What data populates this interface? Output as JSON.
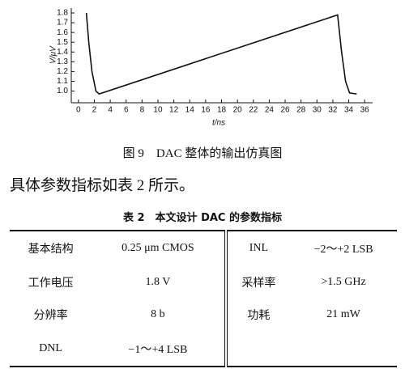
{
  "chart_data": {
    "type": "line",
    "xlabel": "t/ns",
    "ylabel": "V/μV",
    "x": [
      1,
      1.3,
      1.7,
      2.2,
      2.6,
      32.6,
      33.1,
      33.6,
      34.1,
      35
    ],
    "series": [
      {
        "color": "#111111",
        "values": [
          1.8,
          1.5,
          1.2,
          1.0,
          0.97,
          1.78,
          1.4,
          1.1,
          0.98,
          0.97
        ]
      }
    ],
    "xlim": [
      -0.9,
      37
    ],
    "ylim": [
      0.88,
      1.85
    ],
    "xticks": [
      0,
      2,
      4,
      6,
      8,
      10,
      12,
      14,
      16,
      18,
      20,
      22,
      24,
      26,
      28,
      30,
      32,
      34,
      36
    ],
    "yticks": [
      {
        "value": 1,
        "label": "1.0"
      },
      1.1,
      1.2,
      1.3,
      1.4,
      1.5,
      1.6,
      1.7,
      1.8
    ]
  },
  "caption": "图 9　DAC 整体的输出仿真图",
  "paragraph": "具体参数指标如表 2 所示。",
  "table": {
    "title": "表 2　本文设计 DAC 的参数指标",
    "rows": [
      [
        "基本结构",
        "0.25 μm CMOS",
        "INL",
        "−2～+2 LSB"
      ],
      [
        "工作电压",
        "1.8 V",
        "采样率",
        ">1.5 GHz"
      ],
      [
        "分辨率",
        "8 b",
        "功耗",
        "21 mW"
      ],
      [
        "DNL",
        "−1～+4 LSB"
      ]
    ]
  }
}
